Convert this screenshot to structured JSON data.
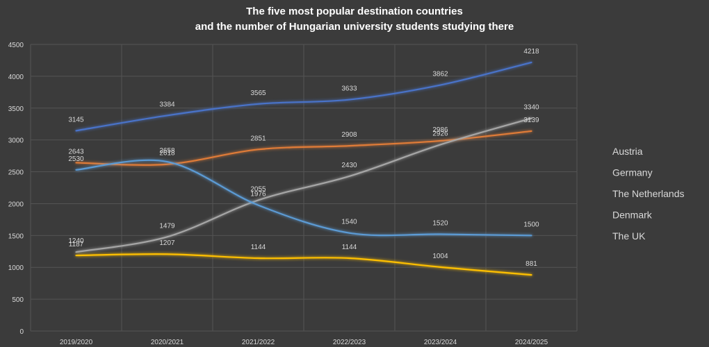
{
  "chart_data": {
    "type": "line",
    "title_line1": "The five most popular destination countries",
    "title_line2": "and the number of Hungarian university students studying there",
    "xlabel": "",
    "ylabel": "",
    "ylim": [
      0,
      4500
    ],
    "y_ticks": [
      0,
      500,
      1000,
      1500,
      2000,
      2500,
      3000,
      3500,
      4000,
      4500
    ],
    "y_tick_labels": [
      "0",
      "500",
      "1000",
      "1500",
      "2000",
      "2500",
      "3000",
      "3500",
      "4000",
      "4500"
    ],
    "categories": [
      "2019/2020",
      "2020/2021",
      "2021/2022",
      "2022/2023",
      "2023/2024",
      "2024/2025"
    ],
    "grid": true,
    "legend_position": "right",
    "series": [
      {
        "name": "Austria",
        "color": "#4a73c9",
        "values": [
          3145,
          3384,
          3565,
          3633,
          3862,
          4218
        ],
        "labels": [
          "3145",
          "3384",
          "3565",
          "3633",
          "3862",
          "4218"
        ]
      },
      {
        "name": "Germany",
        "color": "#e07b39",
        "values": [
          2643,
          2618,
          2851,
          2908,
          2986,
          3139
        ],
        "labels": [
          "2643",
          "2618",
          "2851",
          "2908",
          "2986",
          "3139"
        ]
      },
      {
        "name": "The Netherlands",
        "color": "#a6a6a6",
        "values": [
          1240,
          1479,
          2055,
          2430,
          2926,
          3340
        ],
        "labels": [
          "1240",
          "1479",
          "2055",
          "2430",
          "2926",
          "3340"
        ]
      },
      {
        "name": "Denmark",
        "color": "#ffc000",
        "values": [
          1187,
          1207,
          1144,
          1144,
          1004,
          881
        ],
        "labels": [
          "1187",
          "1207",
          "1144",
          "1144",
          "1004",
          "881"
        ]
      },
      {
        "name": "The UK",
        "color": "#5b9bd5",
        "values": [
          2530,
          2658,
          1976,
          1540,
          1520,
          1500
        ],
        "labels": [
          "2530",
          "2658",
          "1976",
          "1540",
          "1520",
          "1500"
        ]
      }
    ]
  }
}
